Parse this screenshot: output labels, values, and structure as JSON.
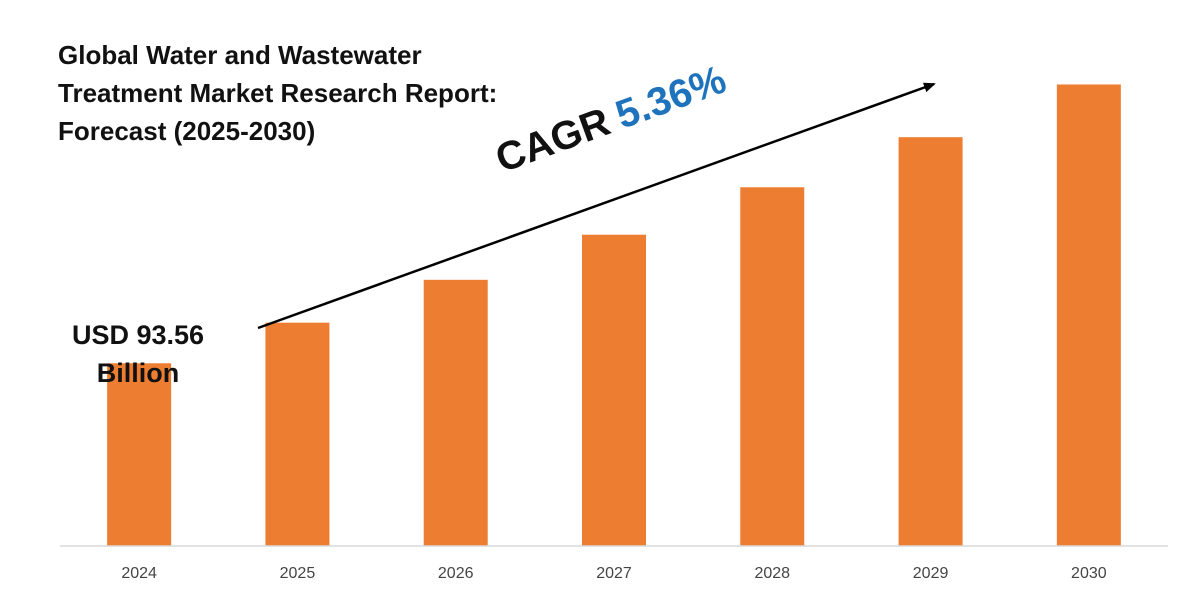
{
  "chart_data": {
    "type": "bar",
    "title": "Global Water and Wastewater Treatment Market Research Report: Forecast (2025-2030)",
    "title_lines": [
      "Global Water and Wastewater",
      "Treatment Market Research Report:",
      "Forecast (2025-2030)"
    ],
    "categories": [
      "2024",
      "2025",
      "2026",
      "2027",
      "2028",
      "2029",
      "2030"
    ],
    "values": [
      93.56,
      98.57,
      103.86,
      109.43,
      115.29,
      121.47,
      127.98
    ],
    "ylim": [
      71,
      131
    ],
    "xlabel": "",
    "ylabel": "",
    "grid": false,
    "annotations": {
      "start_value_lines": [
        "USD 93.56",
        "Billion"
      ],
      "cagr_word": "CAGR",
      "cagr_value": "5.36%"
    }
  },
  "colors": {
    "bar": "#ed7d31",
    "cagr_value": "#1f73bd",
    "axis": "#d9d9d9",
    "text": "#111111"
  }
}
